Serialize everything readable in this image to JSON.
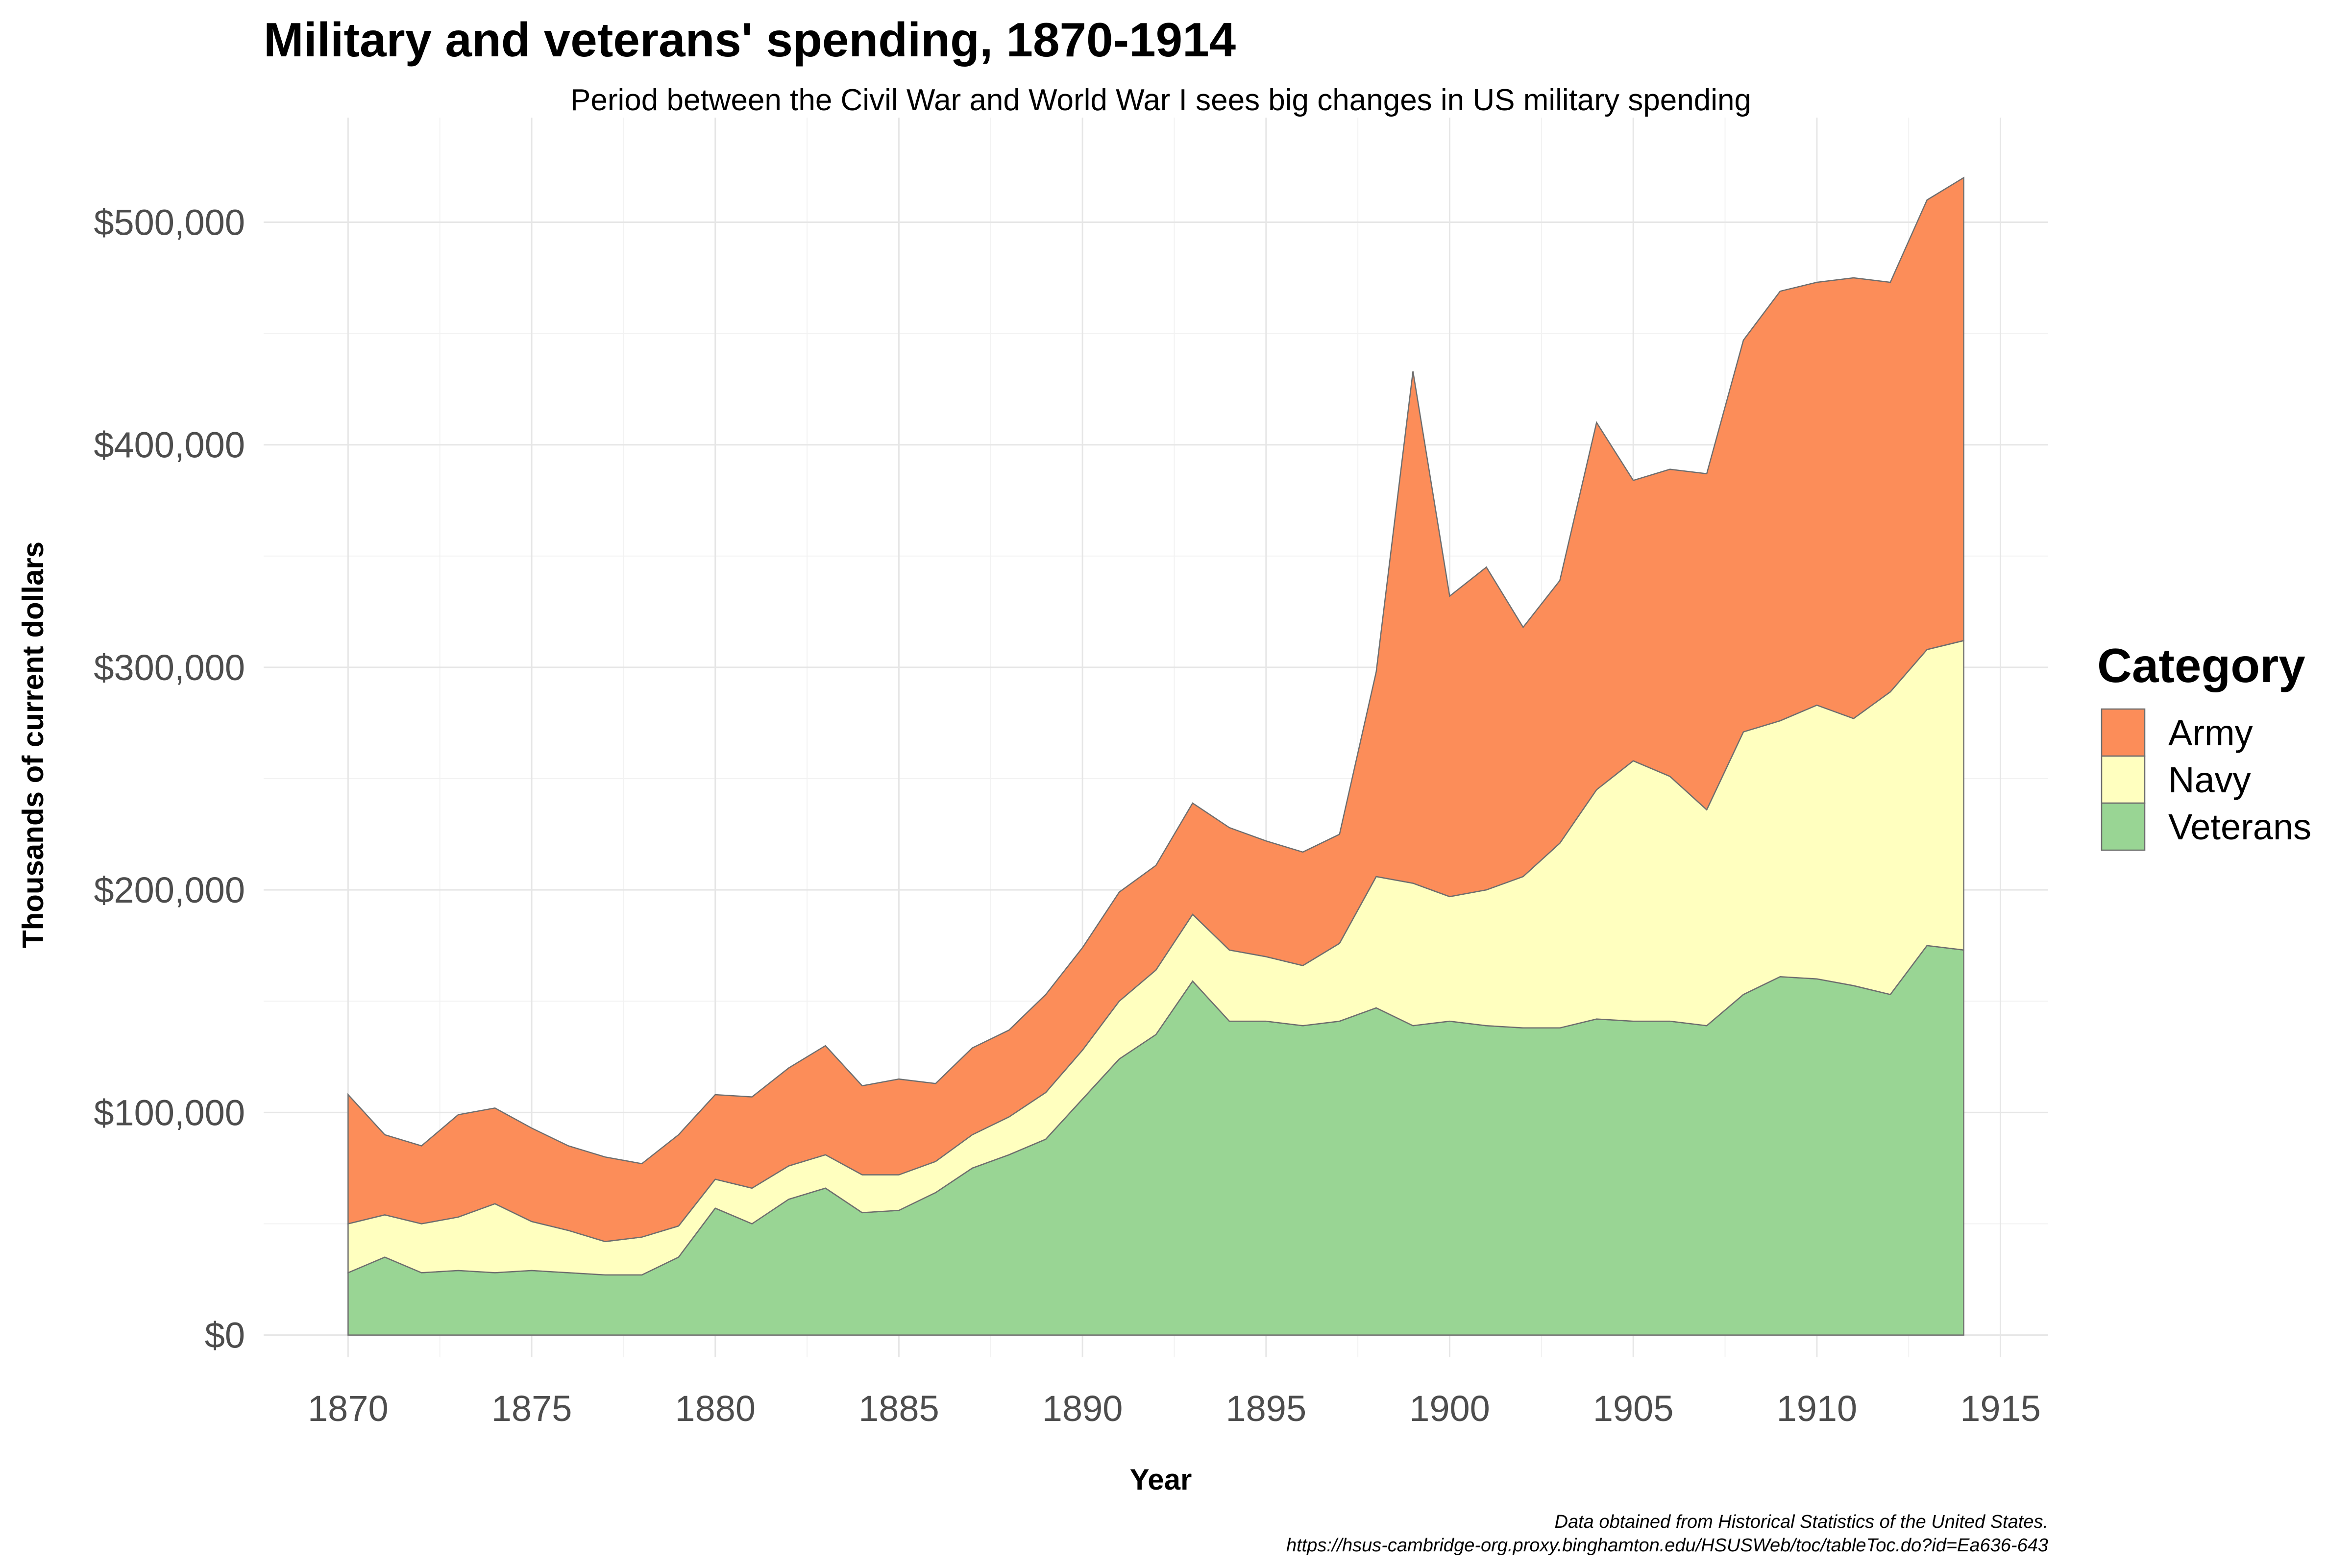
{
  "chart_data": {
    "type": "area",
    "title": "Military and veterans' spending, 1870-1914",
    "subtitle": "Period between the Civil War and World War I sees big changes in US military spending",
    "xlabel": "Year",
    "ylabel": "Thousands of current dollars",
    "caption_line1": "Data obtained from Historical Statistics of the United States.",
    "caption_line2": "https://hsus-cambridge-org.proxy.binghamton.edu/HSUSWeb/toc/tableToc.do?id=Ea636-643",
    "legend_title": "Category",
    "legend_position": "right",
    "stacked": true,
    "grid": true,
    "xlim": [
      1867.7,
      1916.3
    ],
    "ylim": [
      -10000,
      547000
    ],
    "x_ticks": [
      1870,
      1875,
      1880,
      1885,
      1890,
      1895,
      1900,
      1905,
      1910,
      1915
    ],
    "x_tick_labels": [
      "1870",
      "1875",
      "1880",
      "1885",
      "1890",
      "1895",
      "1900",
      "1905",
      "1910",
      "1915"
    ],
    "y_ticks": [
      0,
      100000,
      200000,
      300000,
      400000,
      500000
    ],
    "y_tick_labels": [
      "$0",
      "$100,000",
      "$200,000",
      "$300,000",
      "$400,000",
      "$500,000"
    ],
    "x": [
      1870,
      1871,
      1872,
      1873,
      1874,
      1875,
      1876,
      1877,
      1878,
      1879,
      1880,
      1881,
      1882,
      1883,
      1884,
      1885,
      1886,
      1887,
      1888,
      1889,
      1890,
      1891,
      1892,
      1893,
      1894,
      1895,
      1896,
      1897,
      1898,
      1899,
      1900,
      1901,
      1902,
      1903,
      1904,
      1905,
      1906,
      1907,
      1908,
      1909,
      1910,
      1911,
      1912,
      1913,
      1914
    ],
    "series": [
      {
        "name": "Army",
        "color": "#FC8D59",
        "values": [
          58000,
          36000,
          35000,
          46000,
          43000,
          42000,
          38000,
          38000,
          33000,
          41000,
          38000,
          41000,
          44000,
          49000,
          40000,
          43000,
          35000,
          39000,
          39000,
          44000,
          46000,
          49000,
          47000,
          50000,
          55000,
          52000,
          51000,
          49000,
          92000,
          230000,
          135000,
          145000,
          112000,
          118000,
          165000,
          126000,
          138000,
          151000,
          176000,
          193000,
          190000,
          198000,
          184000,
          202000,
          208000
        ]
      },
      {
        "name": "Navy",
        "color": "#FFFFBF",
        "values": [
          22000,
          19000,
          22000,
          24000,
          31000,
          22000,
          19000,
          15000,
          17000,
          14000,
          13000,
          16000,
          15000,
          15000,
          17000,
          16000,
          14000,
          15000,
          17000,
          21000,
          22000,
          26000,
          29000,
          30000,
          32000,
          29000,
          27000,
          35000,
          59000,
          64000,
          56000,
          61000,
          68000,
          83000,
          103000,
          117000,
          110000,
          97000,
          118000,
          115000,
          123000,
          120000,
          136000,
          133000,
          139000
        ]
      },
      {
        "name": "Veterans",
        "color": "#99D594",
        "values": [
          28000,
          35000,
          28000,
          29000,
          28000,
          29000,
          28000,
          27000,
          27000,
          35000,
          57000,
          50000,
          61000,
          66000,
          55000,
          56000,
          64000,
          75000,
          81000,
          88000,
          106000,
          124000,
          135000,
          159000,
          141000,
          141000,
          139000,
          141000,
          147000,
          139000,
          141000,
          139000,
          138000,
          138000,
          142000,
          141000,
          141000,
          139000,
          153000,
          161000,
          160000,
          157000,
          153000,
          175000,
          173000
        ]
      }
    ]
  }
}
